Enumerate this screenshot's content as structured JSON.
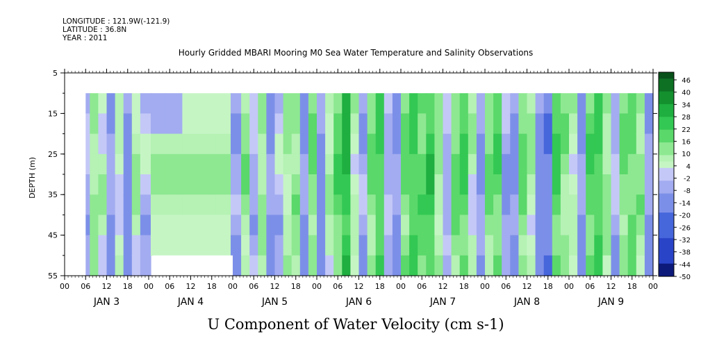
{
  "header": {
    "longitude": "LONGITUDE : 121.9W(-121.9)",
    "latitude": "LATITUDE : 36.8N",
    "year": "YEAR : 2011"
  },
  "chart_data": {
    "type": "heatmap",
    "title": "Hourly Gridded MBARI Mooring M0 Sea Water Temperature and Salinity Observations",
    "xlabel": "U Component of Water Velocity (cm s-1)",
    "ylabel": "DEPTH (m)",
    "ylim": [
      55,
      5
    ],
    "y_ticks": [
      5,
      15,
      25,
      35,
      45,
      55
    ],
    "x_hour_ticks": [
      "00",
      "06",
      "12",
      "18",
      "00",
      "06",
      "12",
      "18",
      "00",
      "06",
      "12",
      "18",
      "00",
      "06",
      "12",
      "18",
      "00",
      "06",
      "12",
      "18",
      "00",
      "06",
      "12",
      "18",
      "00",
      "06",
      "12",
      "18",
      "00"
    ],
    "x_days": [
      "JAN  3",
      "JAN  4",
      "JAN  5",
      "JAN  6",
      "JAN  7",
      "JAN  8",
      "JAN  9"
    ],
    "data_range": {
      "start": "JAN 3 06:00",
      "end": "JAN 9 24:00",
      "depth_top": 10,
      "depth_bottom": 55
    },
    "colorbar": {
      "levels": [
        -50,
        -44,
        -38,
        -32,
        -26,
        -20,
        -14,
        -8,
        -2,
        4,
        10,
        16,
        22,
        28,
        34,
        40,
        46
      ],
      "labels": [
        "46",
        "40",
        "34",
        "28",
        "22",
        "16",
        "10",
        "4",
        "-2",
        "-8",
        "-14",
        "-20",
        "-26",
        "-32",
        "-38",
        "-44",
        "-50"
      ]
    },
    "column_profile_days": [
      3.25,
      3.35,
      3.45,
      3.55,
      3.65,
      3.75,
      3.85,
      3.95,
      4.1,
      4.3,
      4.5,
      4.7,
      4.9,
      5.05,
      5.15,
      5.25,
      5.35,
      5.45,
      5.55,
      5.65,
      5.75,
      5.85,
      5.95,
      6.05,
      6.15,
      6.25,
      6.35,
      6.45,
      6.55,
      6.65,
      6.75,
      6.85,
      6.95,
      7.05,
      7.15,
      7.25,
      7.35,
      7.45,
      7.55,
      7.65,
      7.75,
      7.85,
      7.95,
      8.05,
      8.15,
      8.25,
      8.35,
      8.45,
      8.55,
      8.65,
      8.75,
      8.85,
      8.95,
      9.05,
      9.15,
      9.25,
      9.35,
      9.45,
      9.55,
      9.65,
      9.75,
      9.85,
      9.95
    ],
    "column_profile_u": [
      -6,
      8,
      4,
      -10,
      2,
      -14,
      6,
      -4,
      3,
      5,
      2,
      4,
      3,
      -8,
      10,
      -6,
      8,
      -10,
      -4,
      6,
      10,
      -12,
      12,
      -14,
      6,
      16,
      24,
      4,
      -8,
      12,
      18,
      -6,
      -10,
      14,
      20,
      16,
      22,
      8,
      -6,
      14,
      18,
      4,
      -10,
      12,
      16,
      -8,
      -12,
      14,
      6,
      -14,
      -16,
      18,
      10,
      4,
      -12,
      16,
      20,
      8,
      -6,
      12,
      14,
      10,
      -10
    ],
    "data_gap_start_day": 3.95,
    "data_gap_end_day": 5.05,
    "gap_depth_start": 50
  }
}
